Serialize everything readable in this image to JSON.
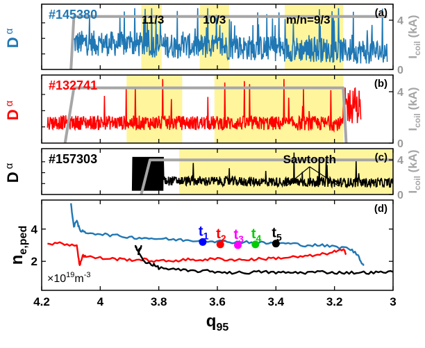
{
  "figure": {
    "x_axis": {
      "label_main": "q",
      "label_sub": "95",
      "ticks": [
        "4.2",
        "4",
        "3.8",
        "3.6",
        "3.4",
        "3.2",
        "3"
      ],
      "range": [
        4.2,
        3.0
      ],
      "reversed": true
    }
  },
  "chart_data": [
    {
      "type": "line",
      "panel_tag": "(a)",
      "shot_label": "#145380",
      "left_label_main": "D",
      "left_label_sub": "α",
      "right_label_main": "I",
      "right_label_sub": "coil",
      "right_label_unit": " (kA)",
      "right_ticks": [
        "0",
        "4"
      ],
      "right_ylim": [
        0,
        5.3
      ],
      "colors": {
        "signal": "#1f77b4",
        "coil": "#a6a6a6",
        "highlight": "#fff59d",
        "label": "#1f77b4"
      },
      "highlights": [
        [
          3.86,
          3.79
        ],
        [
          3.66,
          3.56
        ],
        [
          3.37,
          3.17
        ]
      ],
      "mode_labels": [
        {
          "text": "11/3",
          "x": 3.82
        },
        {
          "text": "10/3",
          "x": 3.61
        },
        {
          "text": "m/n=9/3",
          "x": 3.29
        }
      ],
      "coil_series": {
        "x": [
          4.1,
          4.09,
          3.02
        ],
        "y": [
          0,
          4.3,
          4.3
        ]
      },
      "signal": {
        "x_start": 4.09,
        "x_end": 3.02,
        "base_start": 2.2,
        "base_end": 1.4
      }
    },
    {
      "type": "line",
      "panel_tag": "(b)",
      "shot_label": "#132741",
      "left_label_main": "D",
      "left_label_sub": "α",
      "right_label_main": "I",
      "right_label_sub": "coil",
      "right_label_unit": " (kA)",
      "right_ticks": [
        "0",
        "4"
      ],
      "right_ylim": [
        0,
        5.3
      ],
      "colors": {
        "signal": "#ff0000",
        "coil": "#a6a6a6",
        "highlight": "#fff59d",
        "label": "#ff0000"
      },
      "highlights": [
        [
          3.91,
          3.72
        ],
        [
          3.61,
          3.17
        ]
      ],
      "coil_series": {
        "x": [
          4.12,
          4.09,
          3.17,
          3.16
        ],
        "y": [
          0,
          4.3,
          4.3,
          0
        ]
      },
      "signal": {
        "x_start": 4.18,
        "x_end": 3.11,
        "base_start": 1.6,
        "base_end": 1.5
      }
    },
    {
      "type": "line",
      "panel_tag": "(c)",
      "shot_label": "#157303",
      "left_label_main": "D",
      "left_label_sub": "α",
      "right_label_main": "I",
      "right_label_sub": "coil",
      "right_label_unit": " (kA)",
      "right_ticks": [
        "0",
        "4"
      ],
      "right_ylim": [
        0,
        5.3
      ],
      "colors": {
        "signal": "#000000",
        "coil": "#a6a6a6",
        "highlight": "#fff59d",
        "label": "#000000"
      },
      "highlights": [
        [
          3.73,
          3.0
        ]
      ],
      "annotation": {
        "text": "Sawtooth",
        "points_x": [
          3.365,
          3.285,
          3.185
        ],
        "points_y": [
          3.8,
          3.8,
          3.8
        ]
      },
      "coil_series": {
        "x": [
          3.86,
          3.83,
          3.0
        ],
        "y": [
          0,
          4.0,
          4.0
        ]
      },
      "signal": {
        "x_start": 3.89,
        "x_end": 3.0,
        "base_start": 1.6,
        "base_end": 1.3
      }
    },
    {
      "type": "line",
      "panel_tag": "(d)",
      "ylabel_main": "n",
      "ylabel_sub": "e,ped",
      "unit_prefix": "×10",
      "unit_exp": "19",
      "unit_main": "m",
      "unit_exp2": "-3",
      "y_ticks": [
        "2",
        "4"
      ],
      "ylim": [
        0.2,
        5.8
      ],
      "series": [
        {
          "color": "#1f77b4",
          "x": [
            4.1,
            4.09,
            4.08,
            4.07,
            4.05,
            4.0,
            3.95,
            3.9,
            3.85,
            3.8,
            3.75,
            3.7,
            3.65,
            3.6,
            3.55,
            3.5,
            3.45,
            3.4,
            3.35,
            3.3,
            3.25,
            3.2,
            3.15,
            3.12,
            3.1
          ],
          "y": [
            5.6,
            4.1,
            4.6,
            3.9,
            3.8,
            3.7,
            3.6,
            3.5,
            3.45,
            3.4,
            3.35,
            3.3,
            3.3,
            3.25,
            3.2,
            3.2,
            3.15,
            3.1,
            3.1,
            3.0,
            3.0,
            2.9,
            2.8,
            2.4,
            1.7
          ]
        },
        {
          "color": "#ff0000",
          "x": [
            4.18,
            4.13,
            4.08,
            4.07,
            4.06,
            4.05,
            4.0,
            3.95,
            3.9,
            3.85,
            3.8,
            3.75,
            3.7,
            3.65,
            3.6,
            3.55,
            3.5,
            3.45,
            3.4,
            3.35,
            3.3,
            3.25,
            3.2,
            3.17,
            3.16
          ],
          "y": [
            3.1,
            3.1,
            3.0,
            1.7,
            2.4,
            2.3,
            2.2,
            2.15,
            2.1,
            2.1,
            2.0,
            2.05,
            2.1,
            2.1,
            2.15,
            2.1,
            2.1,
            2.15,
            2.2,
            2.25,
            2.3,
            2.4,
            2.6,
            2.7,
            2.5
          ]
        },
        {
          "color": "#000000",
          "x": [
            3.88,
            3.87,
            3.86,
            3.87,
            3.85,
            3.82,
            3.8,
            3.75,
            3.7,
            3.65,
            3.6,
            3.55,
            3.5,
            3.45,
            3.4,
            3.35,
            3.3,
            3.25,
            3.2,
            3.15,
            3.1,
            3.05,
            3.0
          ],
          "y": [
            3.0,
            2.6,
            2.9,
            2.5,
            2.0,
            1.8,
            1.6,
            1.5,
            1.4,
            1.4,
            1.35,
            1.3,
            1.3,
            1.35,
            1.3,
            1.3,
            1.3,
            1.35,
            1.3,
            1.3,
            1.3,
            1.3,
            1.35
          ]
        }
      ],
      "time_markers": [
        {
          "label": "t",
          "sub": "1",
          "x": 3.65,
          "y": 3.2,
          "color": "#0000ff"
        },
        {
          "label": "t",
          "sub": "2",
          "x": 3.59,
          "y": 3.05,
          "color": "#ff0000"
        },
        {
          "label": "t",
          "sub": "3",
          "x": 3.53,
          "y": 3.0,
          "color": "#ff00ff"
        },
        {
          "label": "t",
          "sub": "4",
          "x": 3.47,
          "y": 3.05,
          "color": "#00cc00"
        },
        {
          "label": "t",
          "sub": "5",
          "x": 3.4,
          "y": 3.1,
          "color": "#000000"
        }
      ]
    }
  ]
}
